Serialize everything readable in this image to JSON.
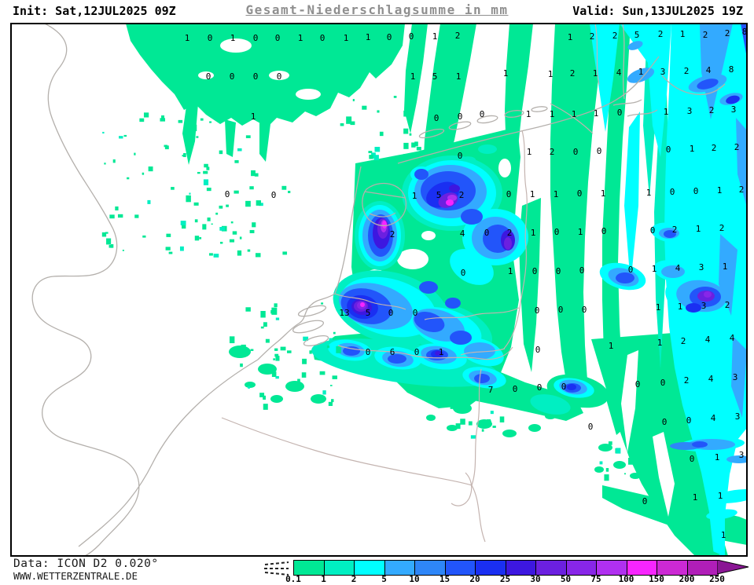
{
  "header": {
    "init_label": "Init: Sat,12JUL2025 09Z",
    "title": "Gesamt-Niederschlagsumme in mm",
    "valid_label": "Valid: Sun,13JUL2025 19Z"
  },
  "footer": {
    "data_source": "Data: ICON D2 0.020°",
    "website": "WWW.WETTERZENTRALE.DE"
  },
  "legend": {
    "unit": "mm",
    "ticks": [
      "0.1",
      "1",
      "2",
      "5",
      "10",
      "15",
      "20",
      "25",
      "30",
      "50",
      "75",
      "100",
      "150",
      "200",
      "250"
    ],
    "colors": [
      "#00E895",
      "#00EFC2",
      "#00FFFF",
      "#33AAFF",
      "#2E86F8",
      "#2255FA",
      "#1A2FF2",
      "#3D17E0",
      "#6B20E0",
      "#8826E8",
      "#B030F0",
      "#F725FF",
      "#CC29D4",
      "#B01EB8"
    ],
    "arrow_color": "#8A1694",
    "below_min_style": "dashed-hatch"
  },
  "map": {
    "model": "ICON D2",
    "background": "#ffffff",
    "coast_color": "#b4b0ac",
    "border_color": "#c4b4b0",
    "number_color": "#000000",
    "values": [
      [
        238,
        48,
        "1"
      ],
      [
        267,
        48,
        "0"
      ],
      [
        296,
        48,
        "1"
      ],
      [
        325,
        48,
        "0"
      ],
      [
        353,
        48,
        "0"
      ],
      [
        382,
        48,
        "1"
      ],
      [
        410,
        48,
        "0"
      ],
      [
        440,
        48,
        "1"
      ],
      [
        468,
        47,
        "1"
      ],
      [
        495,
        47,
        "0"
      ],
      [
        523,
        46,
        "0"
      ],
      [
        553,
        46,
        "1"
      ],
      [
        582,
        45,
        "2"
      ],
      [
        725,
        47,
        "1"
      ],
      [
        753,
        46,
        "2"
      ],
      [
        782,
        45,
        "2"
      ],
      [
        810,
        44,
        "5"
      ],
      [
        840,
        43,
        "2"
      ],
      [
        868,
        43,
        "1"
      ],
      [
        897,
        44,
        "2"
      ],
      [
        925,
        42,
        "2"
      ],
      [
        947,
        40,
        "8"
      ],
      [
        265,
        97,
        "0"
      ],
      [
        295,
        97,
        "0"
      ],
      [
        325,
        97,
        "0"
      ],
      [
        355,
        97,
        "0"
      ],
      [
        525,
        97,
        "1"
      ],
      [
        553,
        97,
        "5"
      ],
      [
        583,
        97,
        "1"
      ],
      [
        643,
        93,
        "1"
      ],
      [
        700,
        94,
        "1"
      ],
      [
        728,
        93,
        "2"
      ],
      [
        757,
        93,
        "1"
      ],
      [
        787,
        92,
        "4"
      ],
      [
        815,
        91,
        "1"
      ],
      [
        843,
        91,
        "3"
      ],
      [
        873,
        90,
        "2"
      ],
      [
        901,
        89,
        "4"
      ],
      [
        930,
        88,
        "8"
      ],
      [
        322,
        148,
        "1"
      ],
      [
        555,
        150,
        "0"
      ],
      [
        585,
        148,
        "0"
      ],
      [
        613,
        145,
        "0"
      ],
      [
        672,
        145,
        "1"
      ],
      [
        702,
        145,
        "1"
      ],
      [
        730,
        145,
        "1"
      ],
      [
        758,
        144,
        "1"
      ],
      [
        788,
        143,
        "0"
      ],
      [
        847,
        142,
        "1"
      ],
      [
        877,
        141,
        "3"
      ],
      [
        905,
        140,
        "2"
      ],
      [
        933,
        139,
        "3"
      ],
      [
        585,
        198,
        "0"
      ],
      [
        673,
        193,
        "1"
      ],
      [
        702,
        193,
        "2"
      ],
      [
        732,
        193,
        "0"
      ],
      [
        762,
        192,
        "0"
      ],
      [
        850,
        190,
        "0"
      ],
      [
        880,
        189,
        "1"
      ],
      [
        908,
        188,
        "2"
      ],
      [
        937,
        187,
        "2"
      ],
      [
        289,
        247,
        "0"
      ],
      [
        348,
        248,
        "0"
      ],
      [
        527,
        249,
        "1"
      ],
      [
        558,
        248,
        "5"
      ],
      [
        587,
        248,
        "2"
      ],
      [
        647,
        247,
        "0"
      ],
      [
        677,
        247,
        "1"
      ],
      [
        707,
        247,
        "1"
      ],
      [
        737,
        246,
        "0"
      ],
      [
        767,
        246,
        "1"
      ],
      [
        825,
        245,
        "1"
      ],
      [
        855,
        244,
        "0"
      ],
      [
        885,
        243,
        "0"
      ],
      [
        915,
        242,
        "1"
      ],
      [
        943,
        241,
        "2"
      ],
      [
        499,
        298,
        "2"
      ],
      [
        588,
        297,
        "4"
      ],
      [
        619,
        296,
        "0"
      ],
      [
        648,
        296,
        "2"
      ],
      [
        678,
        296,
        "1"
      ],
      [
        708,
        295,
        "0"
      ],
      [
        738,
        295,
        "1"
      ],
      [
        768,
        294,
        "0"
      ],
      [
        830,
        293,
        "0"
      ],
      [
        858,
        292,
        "2"
      ],
      [
        888,
        291,
        "1"
      ],
      [
        918,
        290,
        "2"
      ],
      [
        589,
        347,
        "0"
      ],
      [
        649,
        345,
        "1"
      ],
      [
        680,
        345,
        "0"
      ],
      [
        710,
        345,
        "0"
      ],
      [
        740,
        344,
        "0"
      ],
      [
        802,
        343,
        "0"
      ],
      [
        832,
        342,
        "1"
      ],
      [
        862,
        341,
        "4"
      ],
      [
        892,
        340,
        "3"
      ],
      [
        922,
        339,
        "1"
      ],
      [
        438,
        398,
        "13"
      ],
      [
        468,
        398,
        "5"
      ],
      [
        497,
        398,
        "0"
      ],
      [
        528,
        398,
        "0"
      ],
      [
        683,
        395,
        "0"
      ],
      [
        713,
        394,
        "0"
      ],
      [
        743,
        394,
        "0"
      ],
      [
        837,
        391,
        "1"
      ],
      [
        865,
        390,
        "1"
      ],
      [
        895,
        389,
        "3"
      ],
      [
        925,
        388,
        "2"
      ],
      [
        468,
        448,
        "0"
      ],
      [
        499,
        448,
        "6"
      ],
      [
        530,
        448,
        "0"
      ],
      [
        561,
        448,
        "1"
      ],
      [
        684,
        445,
        "0"
      ],
      [
        777,
        440,
        "1"
      ],
      [
        839,
        436,
        "1"
      ],
      [
        869,
        434,
        "2"
      ],
      [
        900,
        432,
        "4"
      ],
      [
        931,
        430,
        "4"
      ],
      [
        624,
        496,
        "7"
      ],
      [
        655,
        495,
        "0"
      ],
      [
        686,
        493,
        "0"
      ],
      [
        717,
        492,
        "0"
      ],
      [
        811,
        489,
        "0"
      ],
      [
        843,
        487,
        "0"
      ],
      [
        873,
        484,
        "2"
      ],
      [
        904,
        482,
        "4"
      ],
      [
        935,
        480,
        "3"
      ],
      [
        751,
        543,
        "0"
      ],
      [
        845,
        537,
        "0"
      ],
      [
        876,
        535,
        "0"
      ],
      [
        907,
        532,
        "4"
      ],
      [
        938,
        530,
        "3"
      ],
      [
        880,
        584,
        "0"
      ],
      [
        912,
        582,
        "1"
      ],
      [
        943,
        579,
        "3"
      ],
      [
        820,
        638,
        "0"
      ],
      [
        884,
        633,
        "1"
      ],
      [
        916,
        631,
        "1"
      ],
      [
        920,
        681,
        "1"
      ]
    ]
  }
}
